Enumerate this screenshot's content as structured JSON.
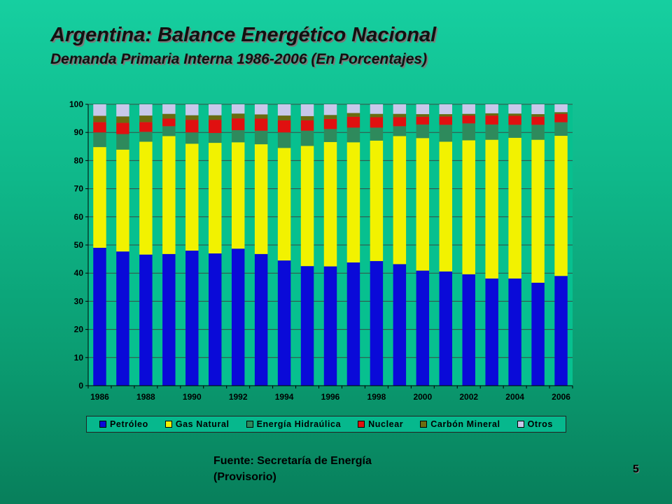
{
  "slide": {
    "title": "Argentina: Balance Energético Nacional",
    "subtitle": "Demanda Primaria Interna 1986-2006 (En Porcentajes)",
    "source_line1": "Fuente: Secretaría de Energía",
    "source_line2": "(Provisorio)",
    "page_number": "5"
  },
  "chart_data": {
    "type": "bar",
    "stacked": true,
    "title": "",
    "xlabel": "",
    "ylabel": "",
    "ylim": [
      0,
      100
    ],
    "yticks": [
      0,
      10,
      20,
      30,
      40,
      50,
      60,
      70,
      80,
      90,
      100
    ],
    "categories": [
      "1986",
      "1987",
      "1988",
      "1989",
      "1990",
      "1991",
      "1992",
      "1993",
      "1994",
      "1995",
      "1996",
      "1997",
      "1998",
      "1999",
      "2000",
      "2001",
      "2002",
      "2003",
      "2004",
      "2005",
      "2006"
    ],
    "x_tick_labels": [
      "1986",
      "1988",
      "1990",
      "1992",
      "1994",
      "1996",
      "1998",
      "2000",
      "2002",
      "2004",
      "2006"
    ],
    "legend_position": "bottom",
    "grid": true,
    "series": [
      {
        "name": "Petróleo",
        "color": "#0a0ad8",
        "values": [
          49,
          47.7,
          46.6,
          46.8,
          48,
          47,
          48.7,
          46.8,
          44.5,
          42.5,
          42.4,
          43.8,
          44.3,
          43.2,
          40.9,
          40.6,
          39.6,
          38.1,
          38.1,
          36.6,
          39
        ]
      },
      {
        "name": "Gas Natural",
        "color": "#f2f200",
        "values": [
          35.8,
          36.2,
          40.1,
          41.9,
          38,
          39.3,
          37.8,
          39,
          40,
          42.7,
          44.2,
          42.7,
          42.8,
          45.5,
          47.1,
          46.1,
          47.6,
          49.3,
          50,
          50.8,
          49.8
        ]
      },
      {
        "name": "Energía Hidraúlica",
        "color": "#2e8a5c",
        "values": [
          5.2,
          5.5,
          3.5,
          3.5,
          4,
          3.5,
          4.3,
          4.8,
          5.5,
          5.4,
          4.6,
          5.2,
          4.6,
          3.5,
          4.8,
          6,
          6,
          5.4,
          4.6,
          5.3,
          4.8
        ]
      },
      {
        "name": "Nuclear",
        "color": "#e01010",
        "values": [
          3.7,
          4,
          3.5,
          2.7,
          4.5,
          4.7,
          4.2,
          4.3,
          4.3,
          3.7,
          3.6,
          3.9,
          3.7,
          3.2,
          2.8,
          3,
          2.8,
          3.2,
          3.2,
          2.9,
          3
        ]
      },
      {
        "name": "Carbón Mineral",
        "color": "#6b6b10",
        "values": [
          2.2,
          2.3,
          2.3,
          1.7,
          1.6,
          1.6,
          1.7,
          1.5,
          1.7,
          1.5,
          1.4,
          1.3,
          1.2,
          1.2,
          0.9,
          0.8,
          0.6,
          0.8,
          0.8,
          0.9,
          0.6
        ]
      },
      {
        "name": "Otros",
        "color": "#c8c8ea",
        "values": [
          4.1,
          4.3,
          4,
          3.4,
          3.9,
          3.9,
          3.3,
          3.6,
          4,
          4.2,
          3.8,
          3.1,
          3.4,
          3.4,
          3.5,
          3.5,
          3.4,
          3.2,
          3.3,
          3.5,
          2.8
        ]
      }
    ]
  }
}
